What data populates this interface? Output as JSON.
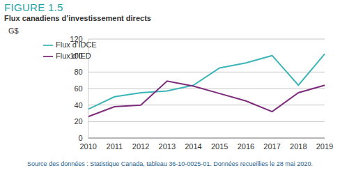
{
  "chart_data": {
    "type": "line",
    "title": "FIGURE 1.5",
    "subtitle": "Flux canadiens d’investissement directs",
    "y_label": "G$",
    "note": "Source des données : Statistique Canada, tableau 36-10-0025-01. Données recueillies le 28 mai 2020.",
    "categories": [
      "2010",
      "2011",
      "2012",
      "2013",
      "2014",
      "2015",
      "2016",
      "2017",
      "2018",
      "2019"
    ],
    "series": [
      {
        "name": "Flux d’IDCE",
        "color": "#3db5b8",
        "values": [
          35,
          50,
          55,
          57,
          64,
          85,
          91,
          100,
          64,
          102
        ]
      },
      {
        "name": "Flux d’IED",
        "color": "#7d2c7d",
        "values": [
          26,
          38,
          40,
          69,
          63,
          54,
          45,
          32,
          55,
          64
        ]
      }
    ],
    "ylim": [
      0,
      120
    ],
    "yticks": [
      0,
      20,
      40,
      60,
      80,
      100,
      120
    ],
    "grid": true,
    "legend": "top-left"
  }
}
